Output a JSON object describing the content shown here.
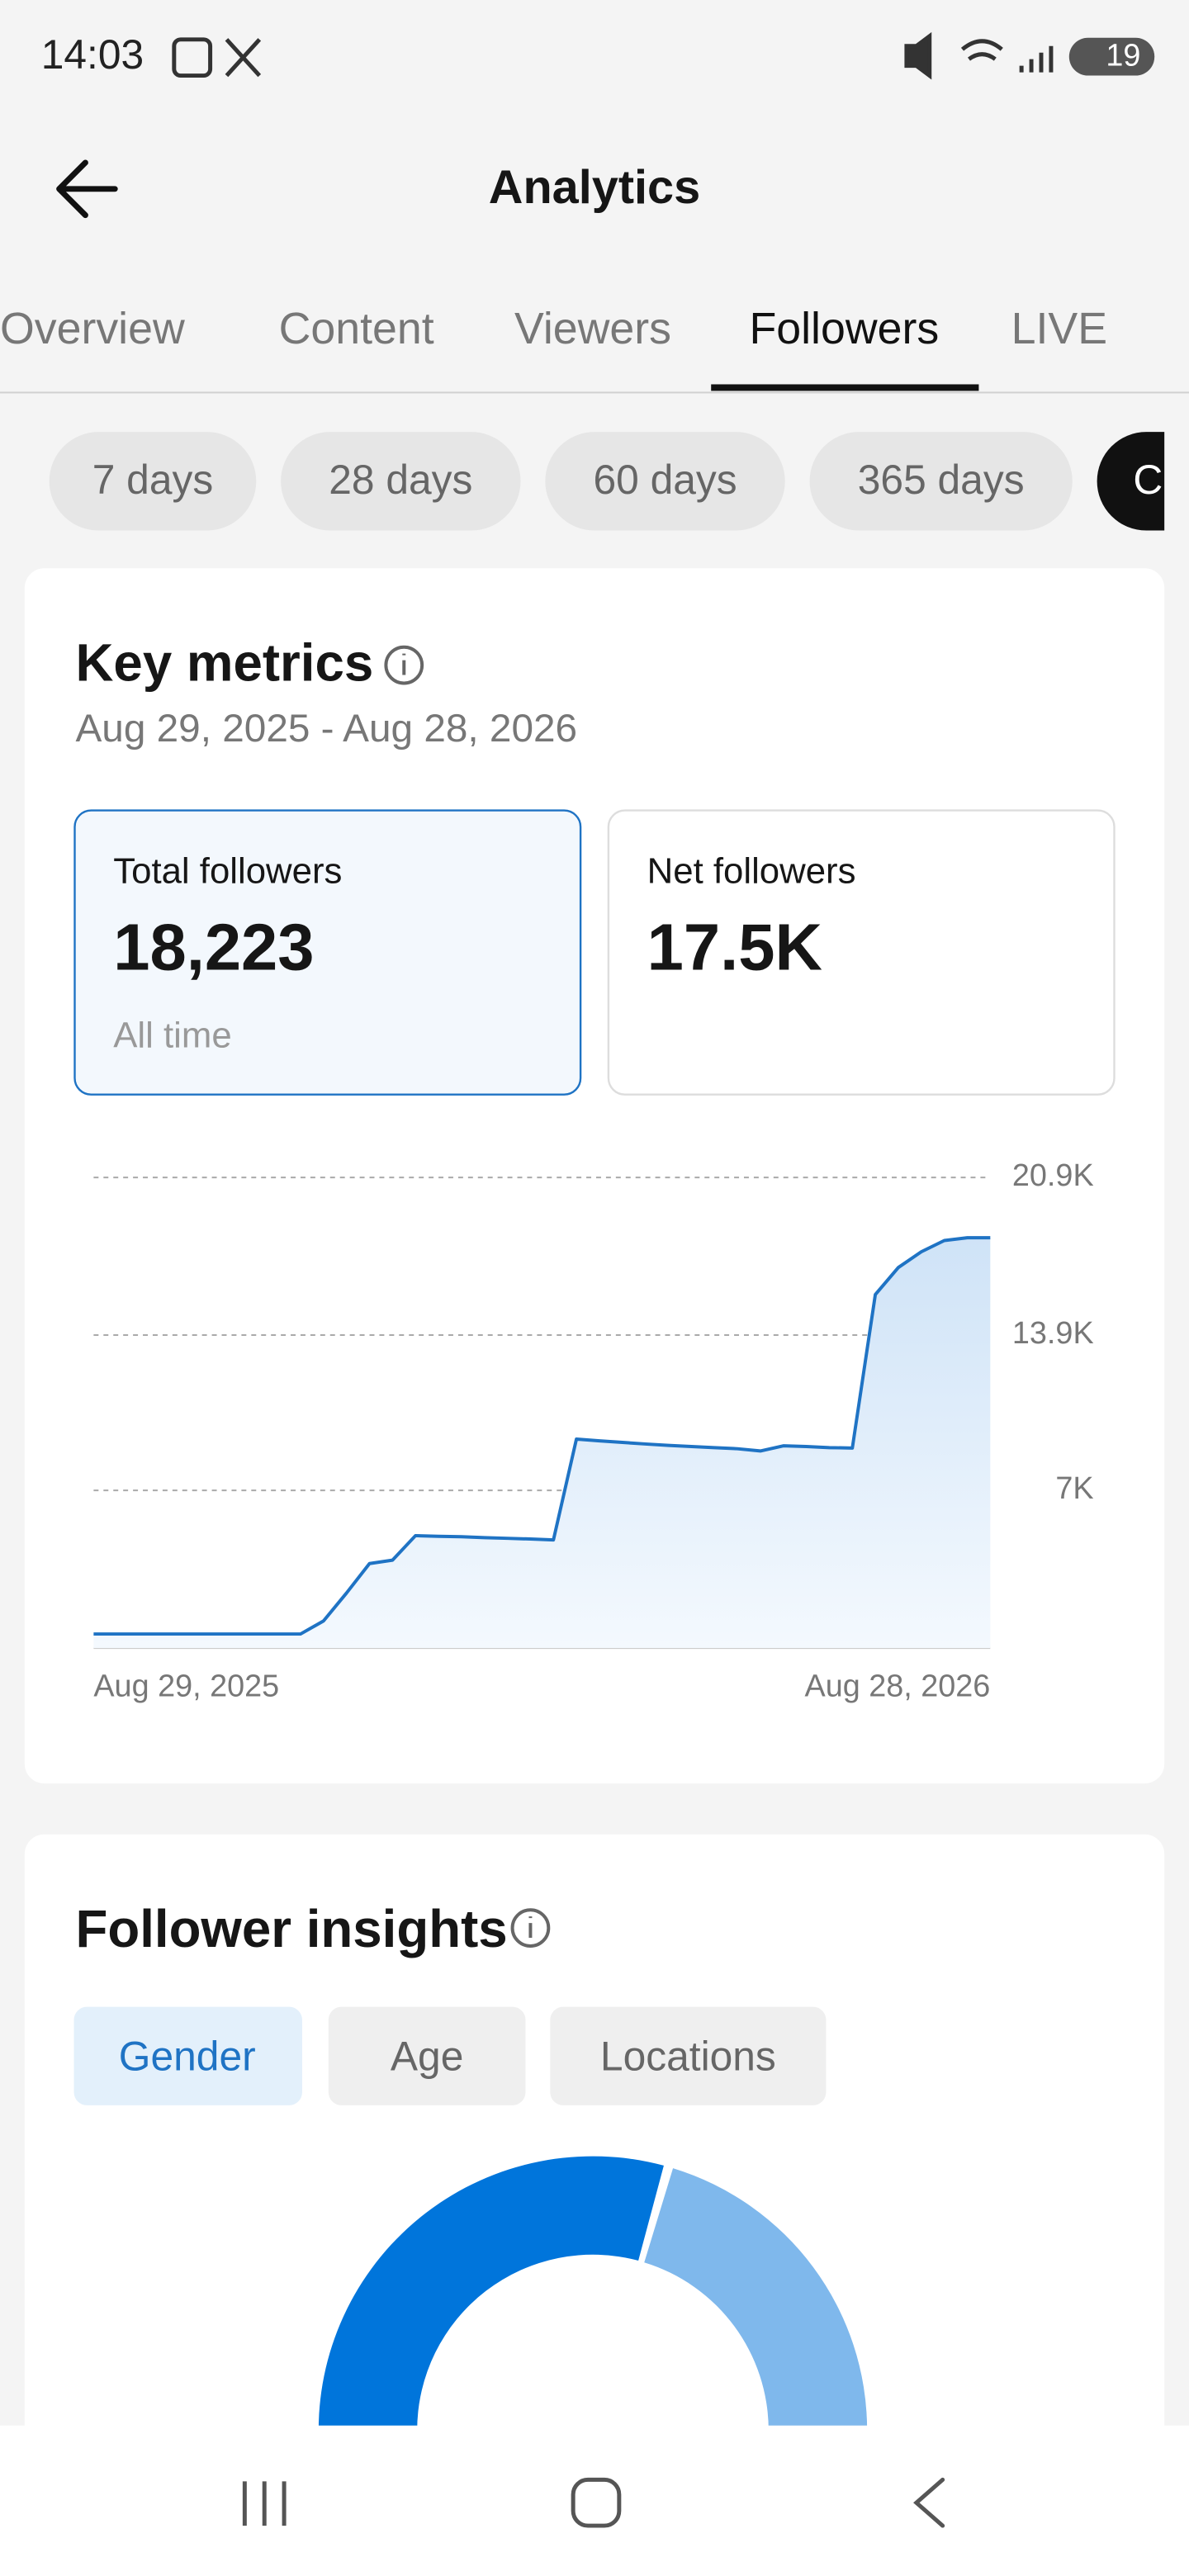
{
  "status_bar": {
    "time": "14:03",
    "battery": "19"
  },
  "header": {
    "title": "Analytics"
  },
  "tabs": [
    "Overview",
    "Content",
    "Viewers",
    "Followers",
    "LIVE"
  ],
  "ranges": [
    "7 days",
    "28 days",
    "60 days",
    "365 days",
    "C"
  ],
  "key_metrics": {
    "title": "Key metrics",
    "date_range": "Aug 29, 2025 - Aug 28, 2026",
    "cards": [
      {
        "label": "Total followers",
        "value": "18,223",
        "note": "All time"
      },
      {
        "label": "Net followers",
        "value": "17.5K"
      }
    ]
  },
  "chart_data": {
    "type": "line",
    "color": "#1f73c4",
    "categories": [
      "Aug 29, 2025",
      null,
      null,
      null,
      null,
      null,
      null,
      null,
      null,
      null,
      null,
      null,
      null,
      null,
      null,
      null,
      null,
      null,
      null,
      null,
      null,
      null,
      null,
      null,
      null,
      null,
      null,
      null,
      null,
      null,
      null,
      null,
      null,
      null,
      null,
      null,
      null,
      null,
      null,
      "Aug 28, 2026"
    ],
    "values": [
      620,
      620,
      620,
      620,
      620,
      620,
      620,
      620,
      620,
      620,
      1200,
      2440,
      3750,
      3900,
      4990,
      4960,
      4940,
      4900,
      4870,
      4840,
      4800,
      9280,
      9200,
      9130,
      9060,
      9000,
      8950,
      8900,
      8850,
      8750,
      8980,
      8950,
      8900,
      8880,
      15700,
      16900,
      17600,
      18100,
      18223,
      18223
    ],
    "ylim": [
      0,
      20900
    ],
    "yticks": [
      {
        "value": 7000,
        "label": "7K"
      },
      {
        "value": 13900,
        "label": "13.9K"
      },
      {
        "value": 20900,
        "label": "20.9K"
      }
    ],
    "grid": true
  },
  "insights": {
    "title": "Follower insights",
    "tabs": [
      "Gender",
      "Age",
      "Locations"
    ]
  }
}
